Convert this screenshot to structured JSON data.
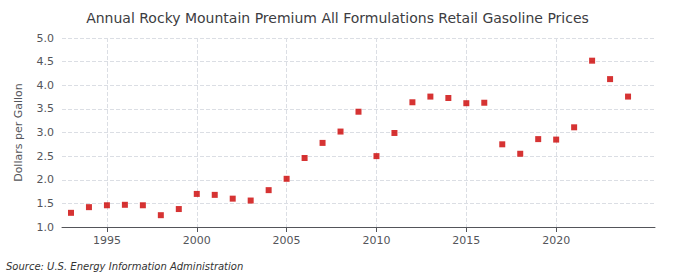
{
  "chart_data": {
    "type": "scatter",
    "title": "Annual Rocky Mountain Premium All Formulations Retail Gasoline Prices",
    "ylabel": "Dollars per Gallon",
    "source": "Source: U.S. Energy Information Administration",
    "x": [
      1993,
      1994,
      1995,
      1996,
      1997,
      1998,
      1999,
      2000,
      2001,
      2002,
      2003,
      2004,
      2005,
      2006,
      2007,
      2008,
      2009,
      2010,
      2011,
      2012,
      2013,
      2014,
      2015,
      2016,
      2017,
      2018,
      2019,
      2020,
      2021,
      2022,
      2023,
      2024
    ],
    "values": [
      1.3,
      1.42,
      1.46,
      1.47,
      1.46,
      1.25,
      1.38,
      1.7,
      1.68,
      1.6,
      1.56,
      1.78,
      2.02,
      2.46,
      2.78,
      3.02,
      3.44,
      2.5,
      2.99,
      3.64,
      3.76,
      3.73,
      3.62,
      3.63,
      2.75,
      2.55,
      2.86,
      2.85,
      3.11,
      4.52,
      4.13,
      3.76
    ],
    "color": "#cc0000",
    "marker": "square",
    "xlim": [
      1992.5,
      2025.5
    ],
    "ylim": [
      1.0,
      5.0
    ],
    "xticks": [
      1995,
      2000,
      2005,
      2010,
      2015,
      2020
    ],
    "yticks": [
      {
        "value": 1.0,
        "label": "1.0"
      },
      1.5,
      {
        "value": 2.0,
        "label": "2.0"
      },
      2.5,
      {
        "value": 3.0,
        "label": "3.0"
      },
      3.5,
      {
        "value": 4.0,
        "label": "4.0"
      },
      4.5,
      {
        "value": 5.0,
        "label": "5.0"
      }
    ],
    "grid": true
  }
}
